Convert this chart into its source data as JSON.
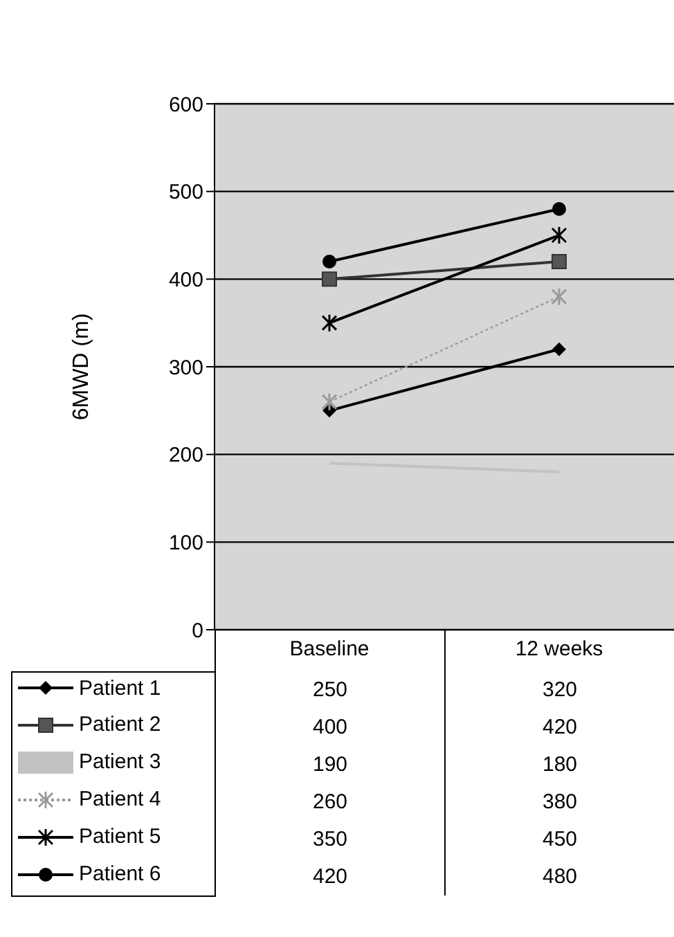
{
  "chart_data": {
    "type": "line",
    "ylabel": "6MWD (m)",
    "categories": [
      "Baseline",
      "12 weeks"
    ],
    "ylim": [
      0,
      600
    ],
    "yticks": [
      0,
      100,
      200,
      300,
      400,
      500,
      600
    ],
    "grid": "y",
    "legend": "bottom",
    "data_labels": true,
    "series": [
      {
        "name": "Patient 1",
        "color": "#000000",
        "values": [
          250,
          320
        ],
        "marker": "diamond",
        "line_style": "solid"
      },
      {
        "name": "Patient 2",
        "color": "#333333",
        "values": [
          400,
          420
        ],
        "marker": "square",
        "line_style": "solid"
      },
      {
        "name": "Patient 3",
        "color": "#c2c2c2",
        "values": [
          190,
          180
        ],
        "marker": "none",
        "line_style": "solid"
      },
      {
        "name": "Patient 4",
        "color": "#9a9a9a",
        "values": [
          260,
          380
        ],
        "marker": "cross",
        "line_style": "dotted"
      },
      {
        "name": "Patient 5",
        "color": "#000000",
        "values": [
          350,
          450
        ],
        "marker": "cross",
        "line_style": "solid"
      },
      {
        "name": "Patient 6",
        "color": "#000000",
        "values": [
          420,
          480
        ],
        "marker": "circle",
        "line_style": "solid"
      }
    ]
  }
}
